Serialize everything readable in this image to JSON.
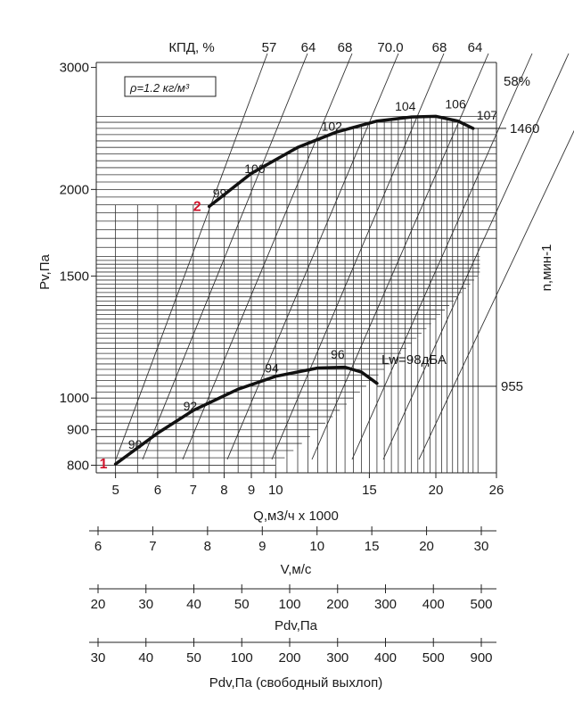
{
  "chart_data": {
    "type": "line",
    "density_note": "ρ=1.2 кг/м³",
    "eff_title": "КПД, %",
    "eff_labels": [
      "57",
      "64",
      "68",
      "70.0",
      "68",
      "64"
    ],
    "eff_end_label": "58%",
    "ylabel": "Pv,Па",
    "ylabel_right": "n,мин-1",
    "xlabel": "Q,м3/ч x 1000",
    "x_ticks": [
      "5",
      "6",
      "7",
      "8",
      "9",
      "10",
      "15",
      "20",
      "26"
    ],
    "y_ticks": [
      "800",
      "900",
      "1000",
      "1500",
      "2000",
      "3000"
    ],
    "ylim": [
      780,
      3050
    ],
    "xlim": [
      4.6,
      26
    ],
    "axes": [
      {
        "name": "V,м/с",
        "ticks": [
          "6",
          "7",
          "8",
          "9",
          "10",
          "15",
          "20",
          "30"
        ]
      },
      {
        "name": "Pdv,Па",
        "ticks": [
          "20",
          "30",
          "40",
          "50",
          "100",
          "200",
          "300",
          "400",
          "500"
        ]
      },
      {
        "name": "Pdv,Па (свободный выхлоп)",
        "ticks": [
          "30",
          "40",
          "50",
          "100",
          "200",
          "300",
          "400",
          "500",
          "900"
        ]
      }
    ],
    "series": [
      {
        "name": "1460",
        "marker": "2",
        "x": [
          7.5,
          9.0,
          11.0,
          13.0,
          15.5,
          18.0,
          20.0,
          22.0,
          23.5
        ],
        "y": [
          1890,
          2110,
          2300,
          2420,
          2510,
          2545,
          2550,
          2510,
          2450
        ],
        "noise_labels": [
          {
            "text": "99",
            "x": 7.5
          },
          {
            "text": "100",
            "x": 8.6
          },
          {
            "text": "102",
            "x": 12.0
          },
          {
            "text": "104",
            "x": 16.5
          },
          {
            "text": "106",
            "x": 20.5
          },
          {
            "text": "107",
            "x": 23.5
          }
        ]
      },
      {
        "name": "955",
        "marker": "1",
        "x": [
          5.0,
          6.0,
          7.0,
          8.5,
          10.0,
          12.0,
          13.5,
          14.5,
          15.5
        ],
        "y": [
          803,
          890,
          960,
          1030,
          1075,
          1105,
          1108,
          1090,
          1050
        ],
        "noise_labels": [
          {
            "text": "90",
            "x": 5.2
          },
          {
            "text": "92",
            "x": 6.6
          },
          {
            "text": "94",
            "x": 9.4
          },
          {
            "text": "96",
            "x": 12.5
          }
        ]
      }
    ],
    "noise_label": "Lw=98дБА"
  }
}
